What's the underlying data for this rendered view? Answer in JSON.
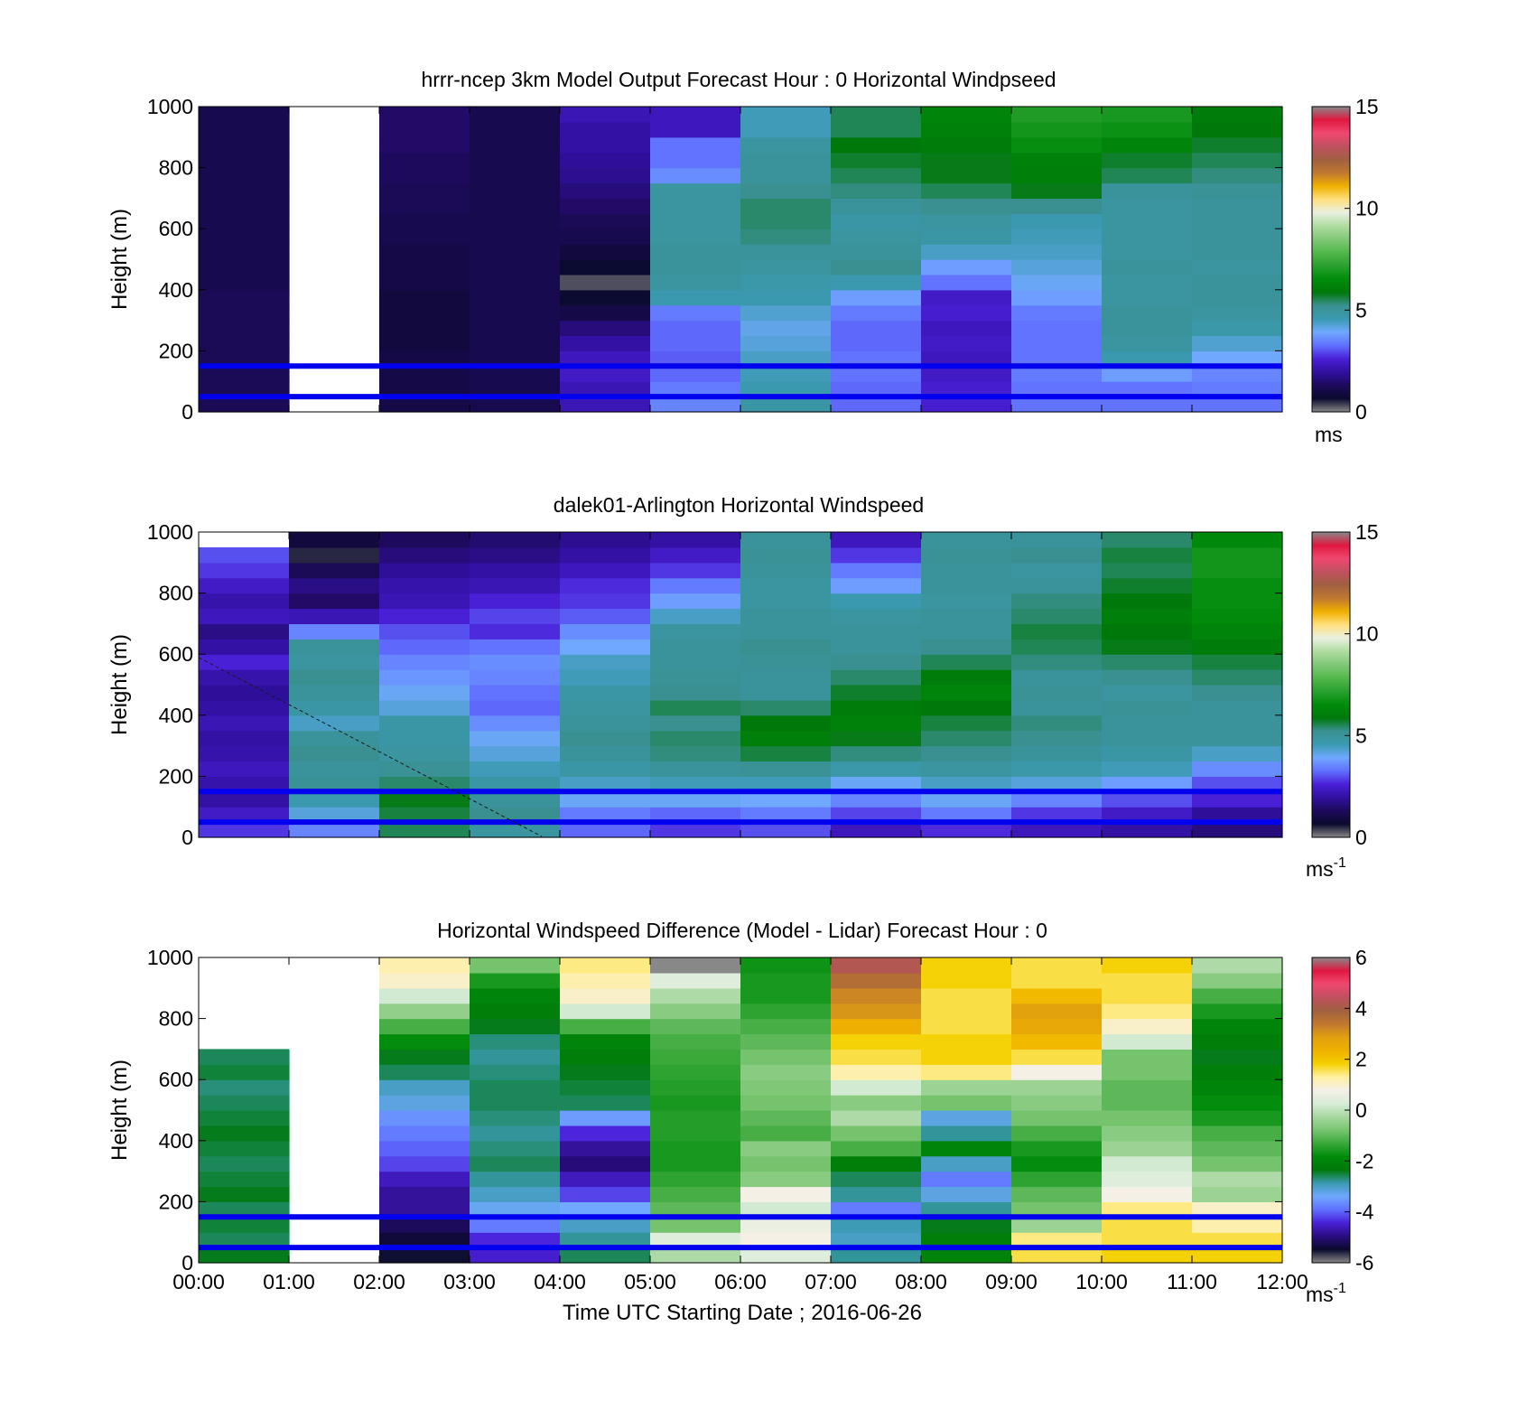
{
  "x_axis": {
    "label": "Time UTC  Starting Date ; 2016-06-26",
    "ticks": [
      "00:00",
      "01:00",
      "02:00",
      "03:00",
      "04:00",
      "05:00",
      "06:00",
      "07:00",
      "08:00",
      "09:00",
      "10:00",
      "11:00",
      "12:00"
    ]
  },
  "colors": {
    "wind_scale": [
      "#888888",
      "#0a0a2e",
      "#1e0a5c",
      "#3010a0",
      "#4a20d8",
      "#6070ff",
      "#70a8ff",
      "#3a9ab0",
      "#3a9090",
      "#00780a",
      "#008c0a",
      "#2aa030",
      "#52b84a",
      "#80c878",
      "#b0dca0",
      "#e8f0e0",
      "#ffe080",
      "#f0b000",
      "#c07830",
      "#a06040",
      "#c05060",
      "#f04870",
      "#e01840",
      "#888888"
    ],
    "diff_scale": [
      "#888888",
      "#0a0a2e",
      "#2a0c80",
      "#4a20d8",
      "#6070ff",
      "#70a8ff",
      "#3a9ab0",
      "#00780a",
      "#008c0a",
      "#3aa83a",
      "#78c470",
      "#a8d8a0",
      "#d8ecd8",
      "#f4f0e8",
      "#fff0a0",
      "#f4d000",
      "#f0b000",
      "#e0a010",
      "#c07830",
      "#a06040",
      "#c05060",
      "#f04870",
      "#e01840",
      "#888888"
    ],
    "ref_line": "#0000ee"
  },
  "chart_data": [
    {
      "type": "heatmap",
      "title": "hrrr-ncep 3km Model Output   Forecast Hour : 0 Horizontal Windpseed",
      "xlabel": "",
      "ylabel": "Height (m)",
      "ylim": [
        0,
        1000
      ],
      "yticks": [
        0,
        200,
        400,
        600,
        800,
        1000
      ],
      "xlim": [
        "00:00",
        "12:00"
      ],
      "colorbar": {
        "min": 0,
        "max": 15,
        "ticks": [
          "0",
          "5",
          "10",
          "15"
        ],
        "unit": "ms",
        "unit_sup": ""
      },
      "heights_m": [
        25,
        75,
        125,
        175,
        225,
        275,
        325,
        375,
        425,
        475,
        525,
        575,
        625,
        675,
        725,
        775,
        825,
        875,
        925,
        975
      ],
      "times": [
        "00:30",
        "01:30",
        "02:30",
        "03:30",
        "04:30",
        "05:30",
        "06:30",
        "07:30",
        "08:30",
        "09:30",
        "10:30",
        "11:30"
      ],
      "values": [
        [
          1.2,
          1.2,
          1.2,
          1.2,
          1.2,
          1.2,
          1.2,
          1.2,
          1.1,
          1.1,
          1.1,
          1.1,
          1.1,
          1.1,
          1.1,
          1.1,
          1.1,
          1.1,
          1.1,
          1.1
        ],
        [
          null,
          null,
          null,
          null,
          null,
          null,
          null,
          null,
          null,
          null,
          null,
          null,
          null,
          null,
          null,
          null,
          null,
          null,
          null,
          null
        ],
        [
          1.0,
          1.0,
          1.0,
          1.0,
          0.9,
          0.9,
          0.9,
          0.9,
          1.0,
          1.0,
          1.0,
          1.1,
          1.1,
          1.2,
          1.2,
          1.3,
          1.3,
          1.4,
          1.4,
          1.4
        ],
        [
          1.1,
          1.1,
          1.1,
          1.1,
          1.1,
          1.1,
          1.1,
          1.1,
          1.1,
          1.1,
          1.1,
          1.1,
          1.1,
          1.1,
          1.1,
          1.1,
          1.1,
          1.1,
          1.1,
          1.1
        ],
        [
          2.2,
          2.2,
          2.4,
          2.3,
          2.0,
          1.6,
          1.0,
          0.7,
          0.3,
          0.7,
          0.9,
          1.1,
          1.2,
          1.4,
          1.6,
          1.8,
          1.9,
          2.0,
          2.0,
          2.2
        ],
        [
          3.5,
          3.4,
          3.2,
          3.1,
          3.2,
          3.2,
          3.4,
          4.6,
          4.9,
          5.0,
          5.0,
          4.9,
          4.9,
          4.9,
          4.9,
          3.6,
          3.3,
          3.3,
          2.3,
          2.3
        ],
        [
          4.8,
          4.6,
          4.5,
          4.4,
          4.2,
          4.1,
          4.3,
          4.6,
          4.7,
          4.9,
          5.0,
          5.3,
          5.4,
          5.4,
          5.2,
          5.0,
          5.0,
          4.9,
          4.5,
          4.5
        ],
        [
          3.2,
          3.2,
          3.3,
          3.3,
          3.2,
          3.2,
          3.4,
          3.8,
          4.6,
          5.2,
          5.0,
          4.9,
          4.8,
          5.0,
          5.3,
          5.5,
          5.7,
          5.9,
          5.5,
          5.5
        ],
        [
          2.5,
          2.5,
          2.4,
          2.3,
          2.4,
          2.3,
          2.5,
          2.4,
          3.3,
          3.8,
          4.4,
          4.8,
          4.9,
          5.2,
          5.5,
          5.8,
          5.8,
          6.0,
          6.2,
          6.3
        ],
        [
          3.3,
          3.3,
          3.4,
          3.3,
          3.3,
          3.3,
          3.4,
          3.8,
          4.0,
          4.2,
          4.4,
          4.5,
          4.6,
          5.2,
          5.8,
          6.1,
          6.2,
          6.6,
          6.8,
          7.0
        ],
        [
          3.3,
          3.3,
          3.8,
          4.6,
          4.9,
          5.0,
          5.0,
          4.9,
          4.9,
          5.0,
          4.9,
          4.9,
          4.9,
          4.9,
          5.0,
          5.5,
          5.7,
          6.3,
          6.7,
          6.9
        ],
        [
          3.3,
          3.4,
          3.5,
          3.9,
          4.3,
          4.7,
          4.9,
          5.0,
          5.0,
          4.9,
          5.0,
          5.0,
          5.0,
          5.0,
          5.1,
          5.3,
          5.5,
          5.7,
          5.9,
          6.0
        ]
      ],
      "ref_lines_m": [
        50,
        150
      ]
    },
    {
      "type": "heatmap",
      "title": "dalek01-Arlington  Horizontal Windspeed",
      "xlabel": "",
      "ylabel": "Height (m)",
      "ylim": [
        0,
        1000
      ],
      "yticks": [
        0,
        200,
        400,
        600,
        800,
        1000
      ],
      "xlim": [
        "00:00",
        "12:00"
      ],
      "colorbar": {
        "min": 0,
        "max": 15,
        "ticks": [
          "0",
          "5",
          "10",
          "15"
        ],
        "unit": "ms",
        "unit_sup": "-1"
      },
      "heights_m": [
        25,
        75,
        125,
        175,
        225,
        275,
        325,
        375,
        425,
        475,
        525,
        575,
        625,
        675,
        725,
        775,
        825,
        875,
        925,
        975
      ],
      "times": [
        "00:30",
        "01:30",
        "02:30",
        "03:30",
        "04:30",
        "05:30",
        "06:30",
        "07:30",
        "08:30",
        "09:30",
        "10:30",
        "11:30"
      ],
      "values": [
        [
          2.8,
          2.4,
          2.0,
          2.1,
          2.3,
          2.1,
          2.0,
          2.2,
          2.0,
          1.9,
          2.1,
          2.6,
          2.0,
          1.7,
          2.3,
          2.1,
          2.4,
          2.8,
          3.0,
          null
        ],
        [
          3.5,
          4.2,
          4.6,
          5.1,
          5.0,
          5.2,
          5.0,
          4.4,
          4.8,
          5.0,
          5.2,
          4.9,
          5.0,
          3.5,
          2.2,
          1.4,
          1.7,
          1.2,
          0.5,
          0.9
        ],
        [
          5.5,
          5.6,
          5.8,
          5.4,
          5.1,
          4.9,
          4.8,
          4.8,
          4.2,
          4.0,
          3.7,
          3.5,
          3.2,
          3.0,
          2.6,
          2.2,
          2.1,
          1.9,
          1.6,
          1.3
        ],
        [
          4.9,
          5.2,
          5.0,
          4.8,
          4.5,
          4.2,
          4.0,
          3.6,
          3.2,
          3.3,
          3.5,
          3.6,
          3.3,
          2.7,
          2.9,
          2.6,
          2.2,
          2.0,
          1.7,
          1.5
        ],
        [
          3.2,
          3.4,
          4.0,
          4.4,
          4.8,
          5.0,
          5.2,
          5.0,
          4.9,
          4.8,
          4.5,
          4.4,
          3.9,
          3.6,
          3.1,
          2.8,
          2.7,
          2.3,
          2.0,
          1.8
        ],
        [
          2.8,
          3.2,
          4.0,
          4.5,
          5.0,
          5.3,
          5.4,
          5.2,
          5.5,
          5.2,
          5.1,
          5.0,
          5.0,
          4.9,
          4.4,
          3.8,
          3.4,
          2.8,
          2.4,
          2.0
        ],
        [
          3.0,
          3.4,
          3.9,
          4.5,
          5.1,
          5.6,
          6.1,
          5.9,
          5.4,
          5.0,
          5.0,
          5.1,
          5.2,
          5.0,
          5.0,
          4.9,
          4.9,
          5.0,
          5.1,
          5.0
        ],
        [
          2.3,
          2.9,
          3.5,
          4.0,
          4.7,
          5.3,
          5.8,
          6.2,
          6.0,
          5.7,
          5.4,
          5.2,
          5.0,
          5.0,
          4.9,
          4.6,
          3.8,
          3.4,
          2.8,
          2.3
        ],
        [
          2.7,
          3.4,
          4.0,
          4.4,
          4.9,
          5.2,
          5.4,
          5.6,
          5.9,
          6.3,
          6.0,
          5.5,
          5.2,
          5.0,
          5.0,
          4.9,
          5.0,
          5.0,
          5.1,
          5.0
        ],
        [
          2.3,
          2.8,
          3.5,
          4.2,
          4.7,
          5.0,
          5.2,
          5.3,
          5.0,
          5.1,
          5.0,
          5.3,
          5.5,
          5.6,
          5.4,
          5.3,
          5.0,
          4.9,
          5.2,
          5.0
        ],
        [
          2.0,
          2.4,
          3.0,
          3.8,
          4.5,
          4.8,
          5.0,
          5.0,
          5.1,
          4.9,
          5.2,
          5.4,
          5.8,
          5.9,
          6.1,
          5.9,
          5.7,
          5.5,
          5.6,
          5.4
        ],
        [
          1.6,
          1.9,
          2.6,
          3.0,
          3.6,
          4.4,
          5.0,
          5.0,
          5.0,
          5.2,
          5.4,
          5.6,
          6.0,
          6.3,
          6.5,
          6.6,
          6.6,
          6.8,
          6.8,
          6.4
        ]
      ],
      "ref_lines_m": [
        50,
        150
      ]
    },
    {
      "type": "heatmap",
      "title": "Horizontal Windspeed Difference (Model - Lidar) Forecast Hour : 0",
      "xlabel": "Time UTC  Starting Date ; 2016-06-26",
      "ylabel": "Height (m)",
      "ylim": [
        0,
        1000
      ],
      "yticks": [
        0,
        200,
        400,
        600,
        800,
        1000
      ],
      "xlim": [
        "00:00",
        "12:00"
      ],
      "colorbar": {
        "min": -6,
        "max": 6,
        "ticks": [
          "-6",
          "-4",
          "-2",
          "0",
          "2",
          "4",
          "6"
        ],
        "unit": "ms",
        "unit_sup": "-1"
      },
      "heights_m": [
        25,
        75,
        125,
        175,
        225,
        275,
        325,
        375,
        425,
        475,
        525,
        575,
        625,
        675,
        725,
        775,
        825,
        875,
        925,
        975
      ],
      "times": [
        "00:30",
        "01:30",
        "02:30",
        "03:30",
        "04:30",
        "05:30",
        "06:30",
        "07:30",
        "08:30",
        "09:30",
        "10:30",
        "11:30"
      ],
      "values": [
        [
          -2.4,
          -2.6,
          -2.5,
          -2.6,
          -2.4,
          -2.5,
          -2.6,
          -2.5,
          -2.4,
          -2.5,
          -2.6,
          -2.7,
          -2.5,
          -2.6,
          null,
          null,
          null,
          null,
          null,
          null
        ],
        [
          null,
          null,
          null,
          null,
          null,
          null,
          null,
          null,
          null,
          null,
          null,
          null,
          null,
          null,
          null,
          null,
          null,
          null,
          null,
          null
        ],
        [
          -5.5,
          -5.4,
          -5.2,
          -4.8,
          -4.8,
          -4.6,
          -4.2,
          -4.0,
          -3.8,
          -3.6,
          -3.2,
          -3.0,
          -2.6,
          -2.4,
          -1.8,
          -1.2,
          -0.5,
          0.2,
          1.0,
          1.2
        ],
        [
          -4.5,
          -4.4,
          -3.8,
          -3.3,
          -3.0,
          -2.8,
          -2.6,
          -2.7,
          -2.8,
          -2.7,
          -2.6,
          -2.6,
          -2.7,
          -2.8,
          -2.7,
          -2.4,
          -2.2,
          -2.0,
          -1.6,
          -0.8
        ],
        [
          -2.6,
          -2.8,
          -3.0,
          -3.4,
          -4.2,
          -4.6,
          -5.0,
          -4.8,
          -4.4,
          -3.5,
          -2.6,
          -2.5,
          -2.4,
          -2.2,
          -2.0,
          -1.2,
          0.2,
          1.0,
          1.2,
          1.4
        ],
        [
          -0.2,
          0.4,
          -0.8,
          -1.0,
          -1.2,
          -1.4,
          -1.6,
          -1.6,
          -1.5,
          -1.5,
          -1.6,
          -1.5,
          -1.4,
          -1.3,
          -1.2,
          -1.0,
          -0.6,
          -0.2,
          0.4,
          -6.0
        ],
        [
          0.4,
          0.8,
          0.6,
          0.2,
          0.8,
          -0.6,
          -0.8,
          -0.6,
          -1.2,
          -1.0,
          -0.8,
          -0.7,
          -0.6,
          -0.8,
          -1.0,
          -1.2,
          -1.4,
          -1.6,
          -1.6,
          -1.7
        ],
        [
          -2.8,
          -3.0,
          -2.9,
          -3.8,
          -2.8,
          -2.6,
          -2.2,
          -1.2,
          -0.8,
          -0.2,
          -0.6,
          0.2,
          1.2,
          1.6,
          1.8,
          2.4,
          3.0,
          3.2,
          3.6,
          4.2
        ],
        [
          -2.0,
          -2.2,
          -2.4,
          -2.8,
          -3.2,
          -3.8,
          -3.0,
          -2.0,
          -2.8,
          -3.2,
          -0.8,
          -0.4,
          1.4,
          1.8,
          1.8,
          1.6,
          1.6,
          1.6,
          1.8,
          1.8
        ],
        [
          1.6,
          1.4,
          -0.4,
          -0.8,
          -1.0,
          -1.4,
          -1.8,
          -1.6,
          -1.2,
          -0.8,
          -0.6,
          -0.4,
          0.8,
          1.6,
          2.2,
          2.6,
          2.8,
          2.2,
          1.6,
          1.6
        ],
        [
          1.8,
          1.6,
          1.6,
          1.4,
          0.8,
          0.4,
          0.2,
          -0.4,
          -0.6,
          -0.8,
          -1.0,
          -1.0,
          -0.8,
          -0.8,
          0.2,
          1.0,
          1.4,
          1.6,
          1.6,
          1.8
        ],
        [
          1.8,
          1.6,
          1.2,
          1.0,
          -0.4,
          -0.2,
          -0.8,
          -1.0,
          -1.2,
          -1.6,
          -1.8,
          -2.0,
          -2.2,
          -2.4,
          -2.2,
          -2.0,
          -1.6,
          -1.2,
          -0.6,
          -0.2
        ]
      ],
      "ref_lines_m": [
        50,
        150
      ]
    }
  ]
}
